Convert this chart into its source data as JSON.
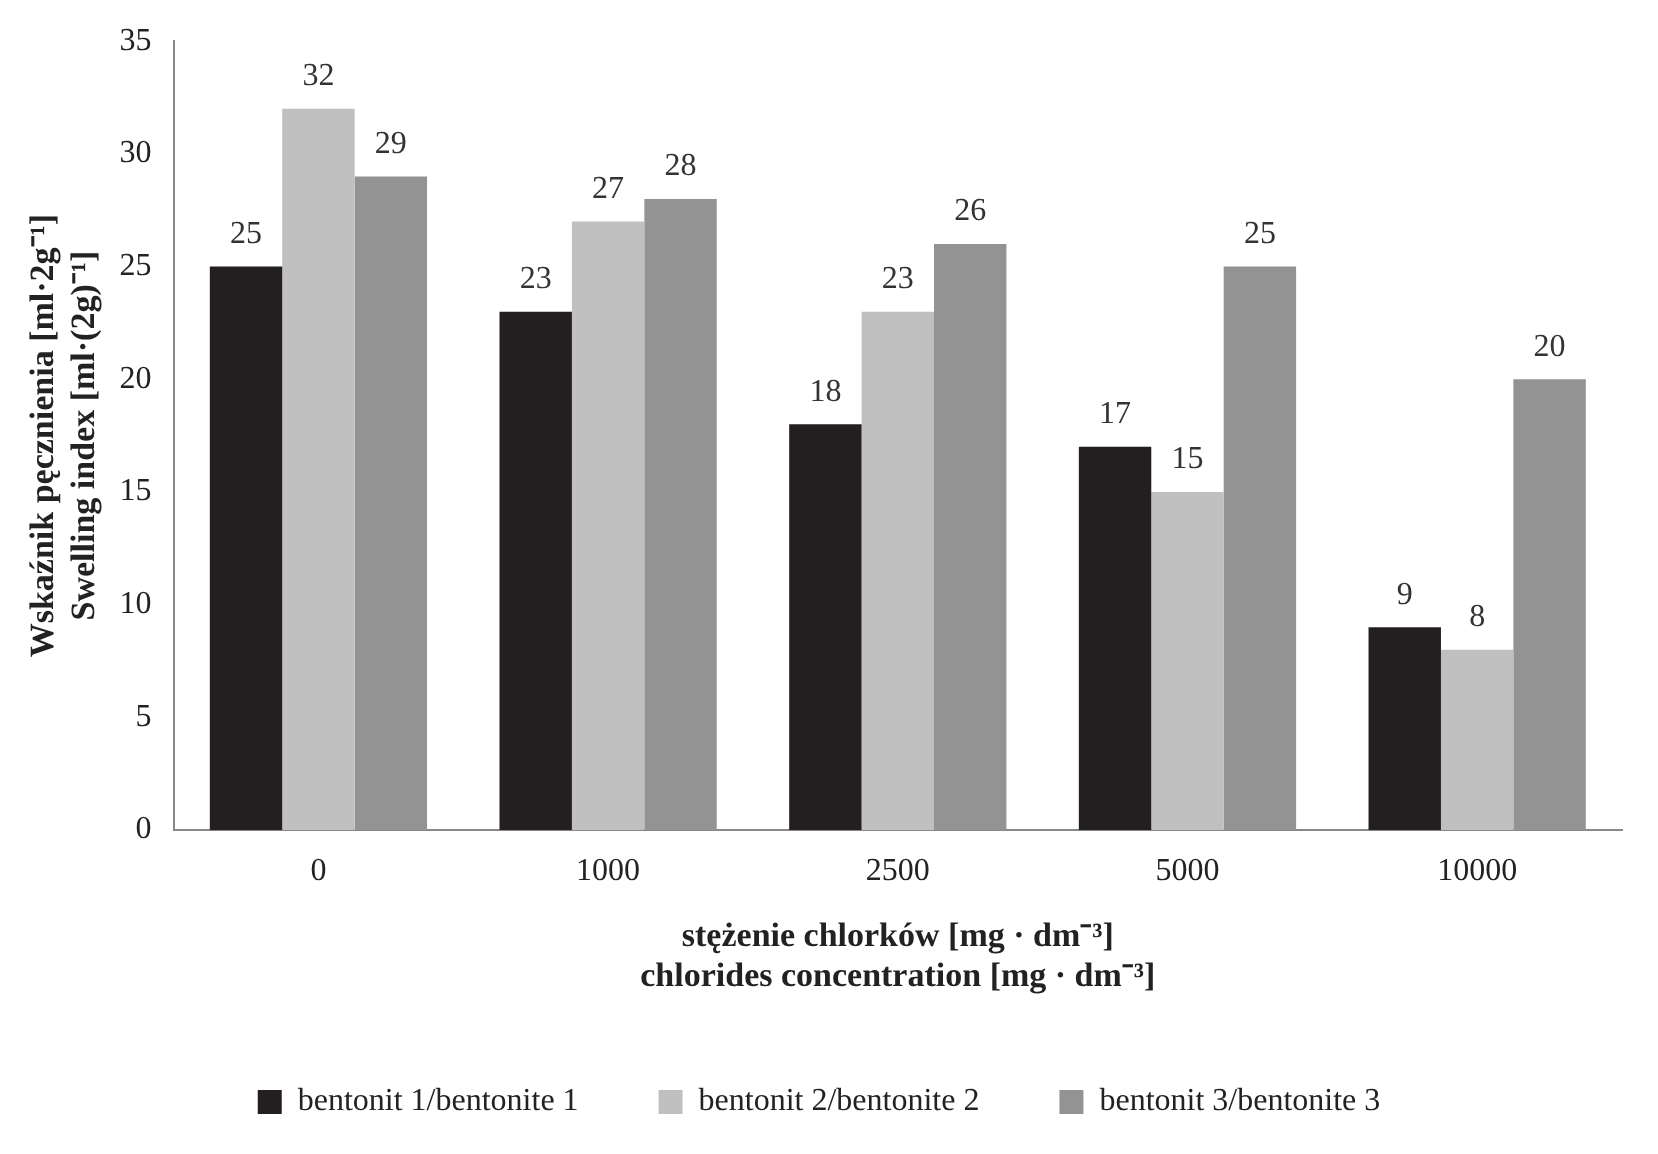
{
  "chart_data": {
    "type": "bar",
    "xlabel": "stężenie chlorków [mg · dm⁻³]\nchlorides concentration [mg · dm⁻³]",
    "ylabel": "Wskaźnik pęcznienia [ml·2g⁻¹]\nSwelling index [ml·(2g)⁻¹]",
    "categories": [
      "0",
      "1000",
      "2500",
      "5000",
      "10000"
    ],
    "series": [
      {
        "name": "bentonit 1/bentonite 1",
        "color": "#231f20",
        "values": [
          25,
          23,
          18,
          17,
          9
        ]
      },
      {
        "name": "bentonit 2/bentonite 2",
        "color": "#c0c0c0",
        "values": [
          32,
          27,
          23,
          15,
          8
        ]
      },
      {
        "name": "bentonit 3/bentonite 3",
        "color": "#939393",
        "values": [
          29,
          28,
          26,
          25,
          20
        ]
      }
    ],
    "ylim": [
      0,
      35
    ],
    "yticks": [
      0,
      5,
      10,
      15,
      20,
      25,
      30,
      35
    ],
    "grid": false,
    "legend": "bottom",
    "data_labels": true
  }
}
